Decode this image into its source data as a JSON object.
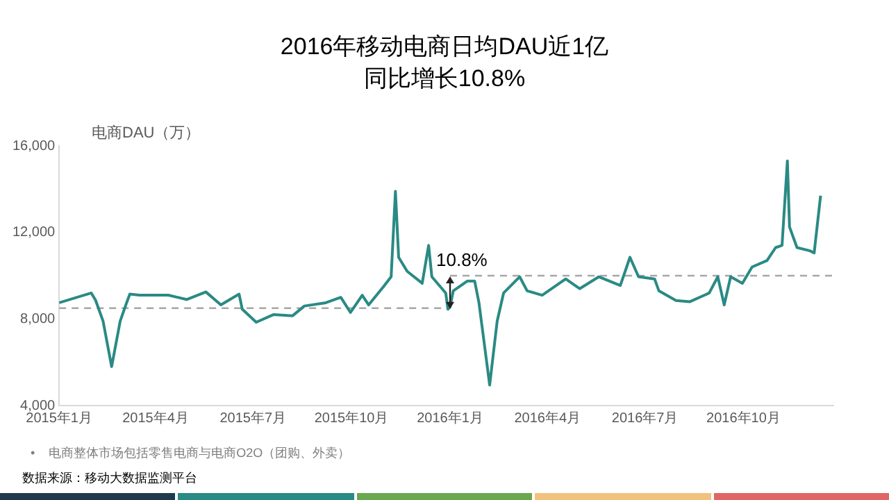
{
  "chart_data": {
    "type": "line",
    "title": "2016年移动电商日均DAU近1亿",
    "subtitle": "同比增长10.8%",
    "ylabel": "电商DAU（万）",
    "series": [
      {
        "color": "#2a8a84",
        "x": [
          "2015-01-01",
          "2015-01-31",
          "2015-02-04",
          "2015-02-11",
          "2015-02-19",
          "2015-02-27",
          "2015-03-05",
          "2015-03-08",
          "2015-03-17",
          "2015-04-13",
          "2015-04-30",
          "2015-05-18",
          "2015-06-01",
          "2015-06-18",
          "2015-06-21",
          "2015-07-04",
          "2015-07-20",
          "2015-08-07",
          "2015-08-18",
          "2015-09-07",
          "2015-09-21",
          "2015-09-30",
          "2015-10-11",
          "2015-10-17",
          "2015-10-31",
          "2015-11-07",
          "2015-11-11",
          "2015-11-14",
          "2015-11-22",
          "2015-12-06",
          "2015-12-12",
          "2015-12-15",
          "2015-12-28",
          "2015-12-30",
          "2016-01-01",
          "2016-01-04",
          "2016-01-17",
          "2016-01-24",
          "2016-01-28",
          "2016-02-07",
          "2016-02-14",
          "2016-02-20",
          "2016-03-06",
          "2016-03-13",
          "2016-03-27",
          "2016-04-18",
          "2016-05-01",
          "2016-05-19",
          "2016-06-08",
          "2016-06-17",
          "2016-06-25",
          "2016-07-10",
          "2016-07-14",
          "2016-07-30",
          "2016-08-12",
          "2016-08-30",
          "2016-09-07",
          "2016-09-13",
          "2016-09-19",
          "2016-09-30",
          "2016-10-09",
          "2016-10-23",
          "2016-10-31",
          "2016-11-06",
          "2016-11-11",
          "2016-11-13",
          "2016-11-20",
          "2016-12-02",
          "2016-12-06",
          "2016-12-12"
        ],
        "values": [
          8750,
          9200,
          8870,
          7900,
          5800,
          7900,
          8750,
          9150,
          9100,
          9100,
          8900,
          9250,
          8650,
          9150,
          8450,
          7850,
          8200,
          8150,
          8600,
          8750,
          9000,
          8300,
          9100,
          8650,
          9500,
          9950,
          13900,
          10850,
          10200,
          9650,
          11400,
          9950,
          9200,
          8450,
          8550,
          9300,
          9750,
          9750,
          8750,
          4950,
          7900,
          9200,
          9950,
          9300,
          9100,
          9850,
          9400,
          9950,
          9550,
          10850,
          9950,
          9850,
          9300,
          8850,
          8800,
          9200,
          9950,
          8650,
          9950,
          9650,
          10400,
          10700,
          11300,
          11400,
          15300,
          12250,
          11300,
          11150,
          11050,
          13700
        ]
      },
      {
        "color": "#a6a6a6",
        "line_style": "dashed",
        "x": [
          "2015-01-01",
          "2016-01-01"
        ],
        "values": [
          8500,
          8500
        ]
      },
      {
        "color": "#a6a6a6",
        "line_style": "dashed",
        "x": [
          "2016-01-01",
          "2016-12-24"
        ],
        "values": [
          10000,
          10000
        ]
      }
    ],
    "xlim": [
      "2015-01-01",
      "2016-12-24"
    ],
    "xticks": [
      {
        "value": "2015-01-01",
        "label": "2015年1月"
      },
      {
        "value": "2015-04-01",
        "label": "2015年4月"
      },
      {
        "value": "2015-07-01",
        "label": "2015年7月"
      },
      {
        "value": "2015-10-01",
        "label": "2015年10月"
      },
      {
        "value": "2016-01-01",
        "label": "2016年1月"
      },
      {
        "value": "2016-04-01",
        "label": "2016年4月"
      },
      {
        "value": "2016-07-01",
        "label": "2016年7月"
      },
      {
        "value": "2016-10-01",
        "label": "2016年10月"
      }
    ],
    "ylim": [
      4000,
      16000
    ],
    "yticks": [
      {
        "value": 4000,
        "label": "4,000"
      },
      {
        "value": 8000,
        "label": "8,000"
      },
      {
        "value": 12000,
        "label": "12,000"
      },
      {
        "value": 16000,
        "label": "16,000"
      }
    ],
    "grid": false,
    "legend": false,
    "marker": "none",
    "line_style": "solid",
    "annotations": [
      {
        "text": "10.8%",
        "x": "2016-01-01",
        "y": 10000
      },
      "•    电商整体市场包括零售电商与电商O2O（团购、外卖）",
      "数据来源：移动大数据监测平台"
    ]
  }
}
